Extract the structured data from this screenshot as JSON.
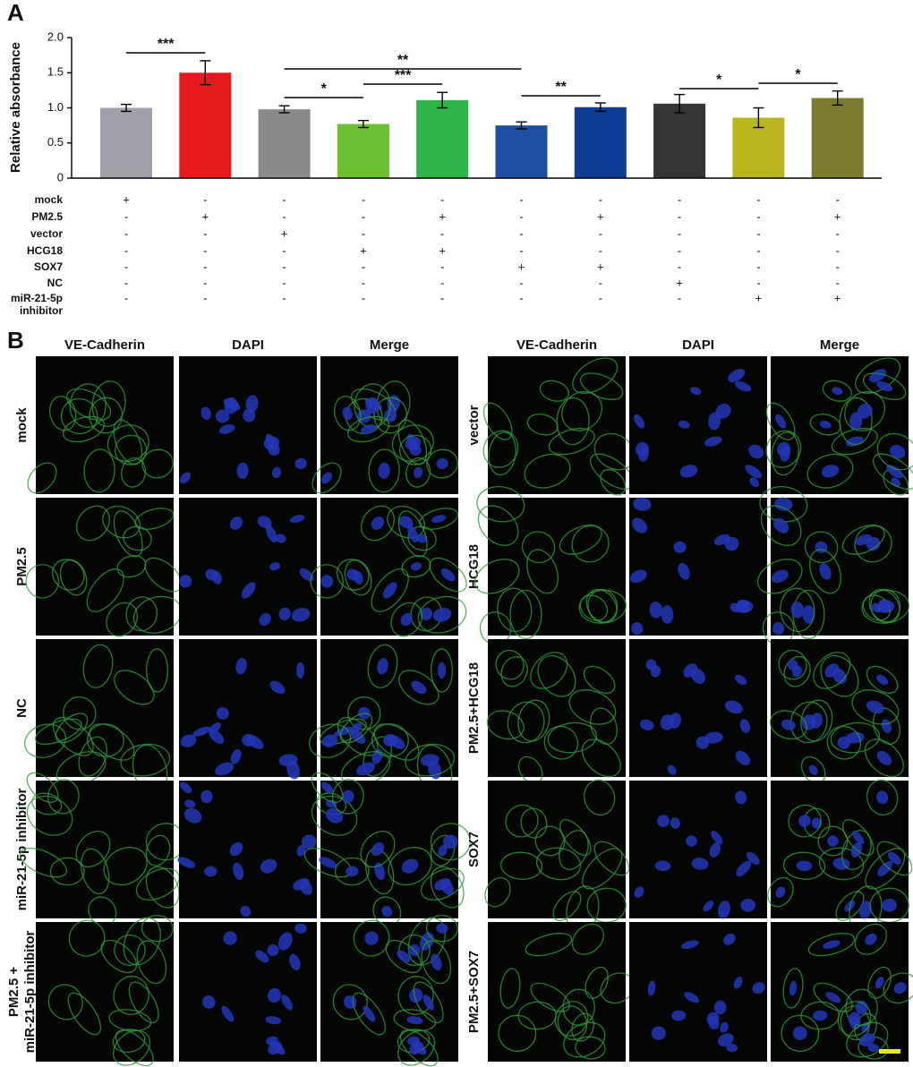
{
  "chart_data": {
    "type": "bar",
    "panel_label": "A",
    "ylabel": "Relative absorbance",
    "values": [
      1.0,
      1.5,
      0.98,
      0.77,
      1.11,
      0.75,
      1.01,
      1.06,
      0.86,
      1.14
    ],
    "errors": [
      0.05,
      0.17,
      0.05,
      0.05,
      0.11,
      0.05,
      0.06,
      0.13,
      0.14,
      0.1
    ],
    "colors": [
      "#a0a0a8",
      "#e8191e",
      "#8a8a8a",
      "#6cbf2e",
      "#2db54a",
      "#1f4fa3",
      "#0e3b93",
      "#333635",
      "#b9b61e",
      "#7c7c30"
    ],
    "ylim": [
      0,
      2
    ],
    "yticks": [
      0,
      0.5,
      {
        "value": 1,
        "label": "1.0"
      },
      1.5,
      {
        "value": 2,
        "label": "2.0"
      }
    ],
    "significance": [
      "***",
      "**",
      "*",
      "***",
      "**",
      "*",
      "*"
    ],
    "treatments": [
      {
        "name": [
          "mock"
        ],
        "signs": [
          "+",
          "-",
          "-",
          "-",
          "-",
          "-",
          "-",
          "-",
          "-",
          "-"
        ]
      },
      {
        "name": [
          "PM2.5"
        ],
        "signs": [
          "-",
          "+",
          "-",
          "-",
          "+",
          "-",
          "+",
          "-",
          "-",
          "+"
        ]
      },
      {
        "name": [
          "vector"
        ],
        "signs": [
          "-",
          "-",
          "+",
          "-",
          "-",
          "-",
          "-",
          "-",
          "-",
          "-"
        ]
      },
      {
        "name": [
          "HCG18"
        ],
        "signs": [
          "-",
          "-",
          "-",
          "+",
          "+",
          "-",
          "-",
          "-",
          "-",
          "-"
        ]
      },
      {
        "name": [
          "SOX7"
        ],
        "signs": [
          "-",
          "-",
          "-",
          "-",
          "-",
          "+",
          "+",
          "-",
          "-",
          "-"
        ]
      },
      {
        "name": [
          "NC"
        ],
        "signs": [
          "-",
          "-",
          "-",
          "-",
          "-",
          "-",
          "-",
          "+",
          "-",
          "-"
        ]
      },
      {
        "name": [
          "miR-21-5p",
          "inhibitor"
        ],
        "signs": [
          "-",
          "-",
          "-",
          "-",
          "-",
          "-",
          "-",
          "-",
          "+",
          "+"
        ]
      }
    ]
  },
  "images": {
    "panel_label": "B",
    "columns": [
      "VE-Cadherin",
      "DAPI",
      "Merge"
    ],
    "left_rows": [
      [
        "mock"
      ],
      [
        "PM2.5"
      ],
      [
        "NC"
      ],
      [
        "miR-21-5p inhibitor"
      ],
      [
        "PM2.5 +",
        "miR-21-5p inhibitor"
      ]
    ],
    "right_rows": [
      [
        "vector"
      ],
      [
        "HCG18"
      ],
      [
        "PM2.5+HCG18"
      ],
      [
        "SOX7"
      ],
      [
        "PM2.5+SOX7"
      ]
    ]
  }
}
